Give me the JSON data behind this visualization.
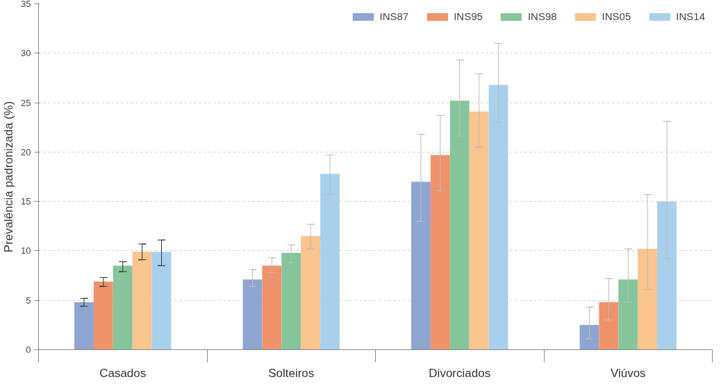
{
  "chart_data": {
    "type": "bar",
    "ylabel": "Prevalência padronizada (%)",
    "categories": [
      "Casados",
      "Solteiros",
      "Divorciados",
      "Viúvos"
    ],
    "ylim": [
      0,
      35
    ],
    "yticks": [
      0,
      5,
      10,
      15,
      20,
      25,
      30,
      35
    ],
    "grid": "y",
    "legend": "top right",
    "series": [
      {
        "name": "INS87",
        "color": "#8fa5d1",
        "values": [
          4.8,
          7.1,
          17.0,
          2.5
        ],
        "errors": [
          [
            4.4,
            5.2
          ],
          [
            6.4,
            8.1
          ],
          [
            13.0,
            21.8
          ],
          [
            1.1,
            4.3
          ]
        ]
      },
      {
        "name": "INS95",
        "color": "#f0926a",
        "values": [
          6.9,
          8.5,
          19.7,
          4.8
        ],
        "errors": [
          [
            6.4,
            7.3
          ],
          [
            7.8,
            9.3
          ],
          [
            16.1,
            23.7
          ],
          [
            3.0,
            7.2
          ]
        ]
      },
      {
        "name": "INS98",
        "color": "#86c59c",
        "values": [
          8.5,
          9.8,
          25.2,
          7.1
        ],
        "errors": [
          [
            7.9,
            8.9
          ],
          [
            8.8,
            10.6
          ],
          [
            21.6,
            29.3
          ],
          [
            4.8,
            10.2
          ]
        ]
      },
      {
        "name": "INS05",
        "color": "#f9c48e",
        "values": [
          9.9,
          11.5,
          24.1,
          10.2
        ],
        "errors": [
          [
            9.1,
            10.7
          ],
          [
            10.2,
            12.7
          ],
          [
            20.5,
            27.9
          ],
          [
            6.1,
            15.7
          ]
        ]
      },
      {
        "name": "INS14",
        "color": "#a8d0ec",
        "values": [
          9.9,
          17.8,
          26.8,
          15.0
        ],
        "errors": [
          [
            8.5,
            11.1
          ],
          [
            15.7,
            19.7
          ],
          [
            23.0,
            31.0
          ],
          [
            9.2,
            23.1
          ]
        ]
      }
    ]
  }
}
